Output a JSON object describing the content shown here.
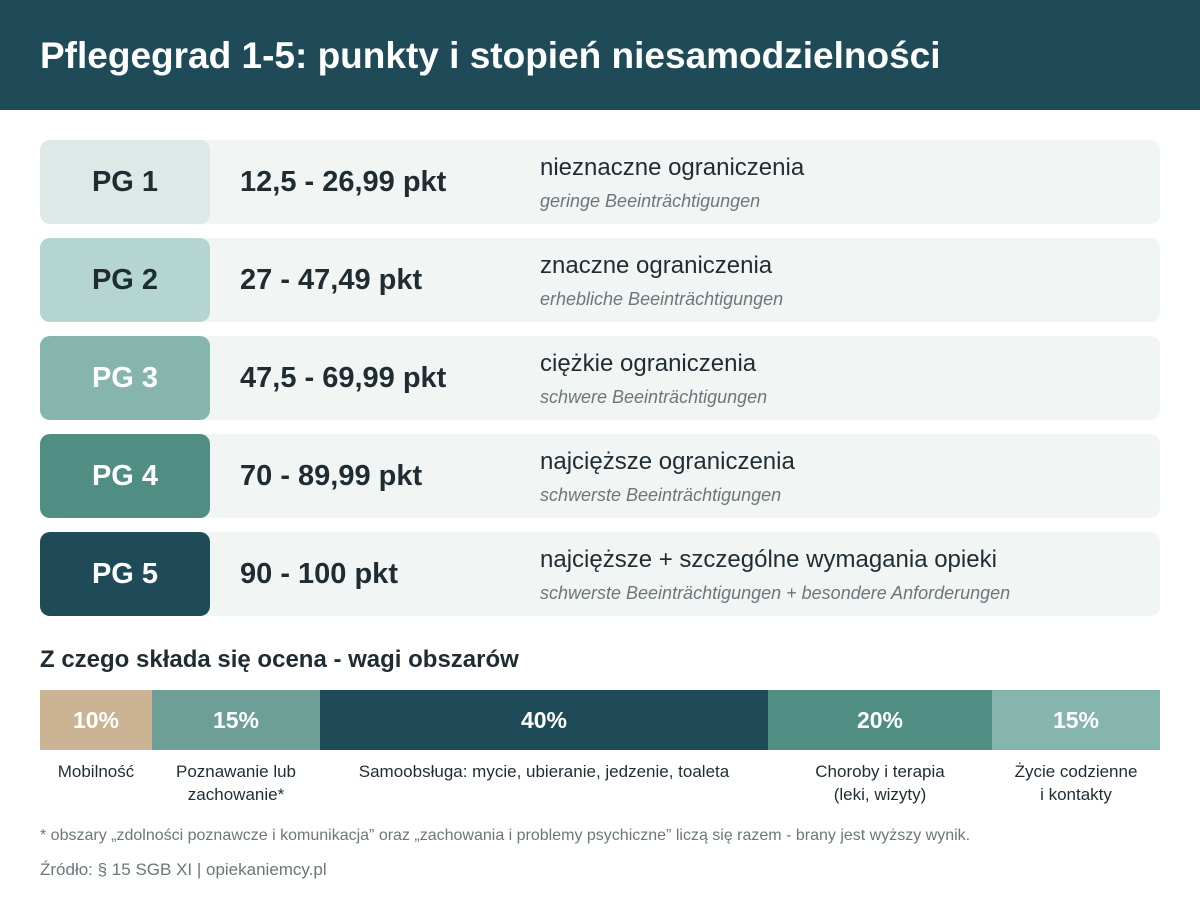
{
  "title": "Pflegegrad 1-5: punkty i stopień niesamodzielności",
  "grades": [
    {
      "label": "PG 1",
      "points": "12,5 - 26,99 pkt",
      "desc_pl": "nieznaczne ograniczenia",
      "desc_de": "geringe Beeinträchtigungen",
      "badge_color": "#dde9e7",
      "badge_text_color": "#1f2d33"
    },
    {
      "label": "PG 2",
      "points": "27 - 47,49 pkt",
      "desc_pl": "znaczne ograniczenia",
      "desc_de": "erhebliche Beeinträchtigungen",
      "badge_color": "#b5d6d0",
      "badge_text_color": "#1f2d33"
    },
    {
      "label": "PG 3",
      "points": "47,5 - 69,99 pkt",
      "desc_pl": "ciężkie ograniczenia",
      "desc_de": "schwere Beeinträchtigungen",
      "badge_color": "#86b5ad",
      "badge_text_color": "#ffffff"
    },
    {
      "label": "PG 4",
      "points": "70 - 89,99 pkt",
      "desc_pl": "najcięższe ograniczenia",
      "desc_de": "schwerste Beeinträchtigungen",
      "badge_color": "#508e84",
      "badge_text_color": "#ffffff"
    },
    {
      "label": "PG 5",
      "points": "90 - 100 pkt",
      "desc_pl": "najcięższe + szczególne wymagania opieki",
      "desc_de": "schwerste Beeinträchtigungen + besondere Anforderungen",
      "badge_color": "#1f4a57",
      "badge_text_color": "#ffffff"
    }
  ],
  "weights": {
    "title": "Z czego składa się ocena - wagi obszarów",
    "segments": [
      {
        "value": 10,
        "label_value": "10%",
        "label": "Mobilność",
        "label_lines": [
          "Mobilność"
        ],
        "color": "#cbb393"
      },
      {
        "value": 15,
        "label_value": "15%",
        "label": "Poznawanie lub zachowanie*",
        "label_lines": [
          "Poznawanie lub",
          "zachowanie*"
        ],
        "color": "#6e9f97"
      },
      {
        "value": 40,
        "label_value": "40%",
        "label": "Samoobsługa: mycie, ubieranie, jedzenie, toaleta",
        "label_lines": [
          "Samoobsługa: mycie, ubieranie, jedzenie, toaleta"
        ],
        "color": "#1f4a57"
      },
      {
        "value": 20,
        "label_value": "20%",
        "label": "Choroby i terapia (leki, wizyty)",
        "label_lines": [
          "Choroby i terapia",
          "(leki, wizyty)"
        ],
        "color": "#508e84"
      },
      {
        "value": 15,
        "label_value": "15%",
        "label": "Życie codzienne i kontakty",
        "label_lines": [
          "Życie codzienne",
          "i kontakty"
        ],
        "color": "#86b5ad"
      }
    ]
  },
  "footnote": "* obszary „zdolności poznawcze i komunikacja” oraz „zachowania i problemy psychiczne” liczą się razem - brany jest wyższy wynik.",
  "source": "Źródło: § 15 SGB XI | opiekaniemcy.pl"
}
